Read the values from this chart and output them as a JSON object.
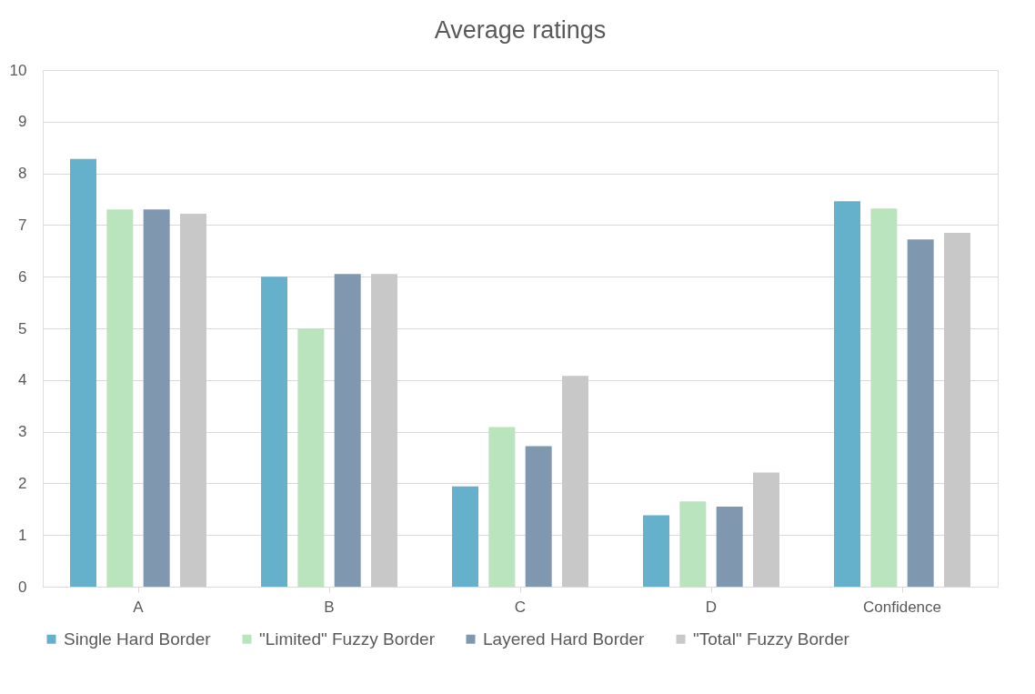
{
  "chart_data": {
    "type": "bar",
    "title": "Average ratings",
    "categories": [
      "A",
      "B",
      "C",
      "D",
      "Confidence"
    ],
    "series": [
      {
        "name": "Single Hard Border",
        "color": "#65b1cb",
        "values": [
          8.28,
          6.0,
          1.94,
          1.38,
          7.46
        ]
      },
      {
        "name": "\"Limited\" Fuzzy Border",
        "color": "#b9e4bd",
        "values": [
          7.3,
          5.0,
          3.09,
          1.65,
          7.32
        ]
      },
      {
        "name": "Layered Hard Border",
        "color": "#8097b0",
        "values": [
          7.3,
          6.05,
          2.72,
          1.55,
          6.72
        ]
      },
      {
        "name": "\"Total\" Fuzzy Border",
        "color": "#c8c8c8",
        "values": [
          7.22,
          6.05,
          4.08,
          2.21,
          6.85
        ]
      }
    ],
    "ylim": [
      0,
      10
    ],
    "yticks": [
      0,
      1,
      2,
      3,
      4,
      5,
      6,
      7,
      8,
      9,
      10
    ],
    "grid": "y",
    "legend": "bottom"
  }
}
